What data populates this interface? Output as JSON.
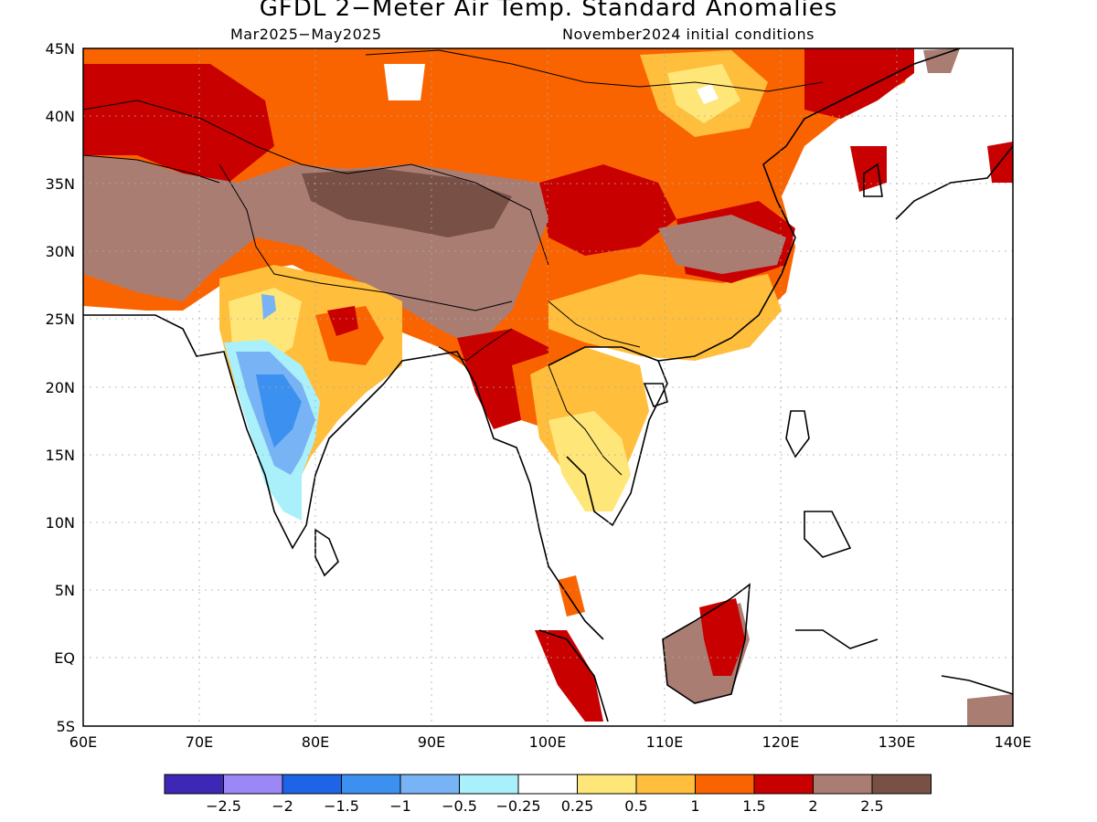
{
  "title": "GFDL 2−Meter Air Temp. Standard Anomalies",
  "subtitle_left": "Mar2025−May2025",
  "subtitle_right": "November2024 initial conditions",
  "lat_labels": [
    "45N",
    "40N",
    "35N",
    "30N",
    "25N",
    "20N",
    "15N",
    "10N",
    "5N",
    "EQ",
    "5S"
  ],
  "lon_labels": [
    "60E",
    "70E",
    "80E",
    "90E",
    "100E",
    "110E",
    "120E",
    "130E",
    "140E"
  ],
  "colorbar": {
    "colors": [
      "#3c28b4",
      "#9b87f5",
      "#1e64e6",
      "#3c91f0",
      "#78b4f5",
      "#aaf0fa",
      "#ffffff",
      "#ffe678",
      "#ffbe3c",
      "#fa6400",
      "#c80000",
      "#aa7d73",
      "#785046"
    ],
    "labels": [
      "−2.5",
      "−2",
      "−1.5",
      "−1",
      "−0.5",
      "−0.25",
      "0.25",
      "0.5",
      "1",
      "1.5",
      "2",
      "2.5"
    ]
  }
}
